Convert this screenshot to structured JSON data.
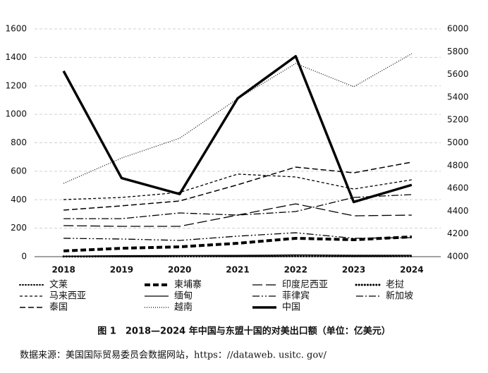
{
  "chart_data": {
    "type": "line",
    "caption": "图 1　2018—2024 年中国与东盟十国的对美出口额（单位：亿美元）",
    "source": "数据来源：美国国际贸易委员会数据网站，https：//dataweb. usitc. gov/",
    "categories": [
      "2018",
      "2019",
      "2020",
      "2021",
      "2022",
      "2023",
      "2024"
    ],
    "ylim": [
      0,
      1600
    ],
    "yticks": [
      0,
      200,
      400,
      600,
      800,
      1000,
      1200,
      1400,
      1600
    ],
    "y2lim": [
      4000,
      6000
    ],
    "y2ticks": [
      4000,
      4200,
      4400,
      4600,
      4800,
      5000,
      5200,
      5400,
      5600,
      5800,
      6000
    ],
    "grid": true,
    "series": [
      {
        "name": "文莱",
        "color": "#000000",
        "style": "dot",
        "values": [
          1,
          1,
          1,
          1,
          1,
          1,
          1
        ]
      },
      {
        "name": "柬埔寨",
        "color": "#000000",
        "style": "thick-dash",
        "values": [
          40,
          59,
          69,
          94,
          129,
          119,
          139
        ]
      },
      {
        "name": "印度尼西亚",
        "color": "#000000",
        "style": "long-dash",
        "values": [
          218,
          213,
          213,
          292,
          371,
          287,
          292
        ]
      },
      {
        "name": "老挝",
        "color": "#000000",
        "style": "dense-dot",
        "values": [
          1,
          2,
          3,
          4,
          5,
          4,
          5
        ]
      },
      {
        "name": "马来西亚",
        "color": "#000000",
        "style": "short-dash",
        "values": [
          401,
          416,
          451,
          580,
          560,
          475,
          540
        ]
      },
      {
        "name": "缅甸",
        "color": "#000000",
        "style": "solid",
        "values": [
          3,
          7,
          8,
          9,
          12,
          10,
          10
        ]
      },
      {
        "name": "菲律宾",
        "color": "#000000",
        "style": "dash-dot-dot",
        "values": [
          129,
          124,
          114,
          144,
          168,
          129,
          134
        ]
      },
      {
        "name": "新加坡",
        "color": "#000000",
        "style": "dash-dot",
        "values": [
          267,
          267,
          307,
          292,
          317,
          416,
          436
        ]
      },
      {
        "name": "泰国",
        "color": "#000000",
        "style": "dash",
        "values": [
          327,
          357,
          391,
          505,
          629,
          589,
          664
        ]
      },
      {
        "name": "越南",
        "color": "#000000",
        "style": "fine-dot",
        "values": [
          515,
          693,
          832,
          1110,
          1357,
          1194,
          1426
        ]
      },
      {
        "name": "中国",
        "color": "#000000",
        "style": "thick-solid",
        "axis": "y2",
        "values": [
          5630,
          4690,
          4550,
          5390,
          5760,
          4480,
          4630
        ]
      }
    ]
  }
}
